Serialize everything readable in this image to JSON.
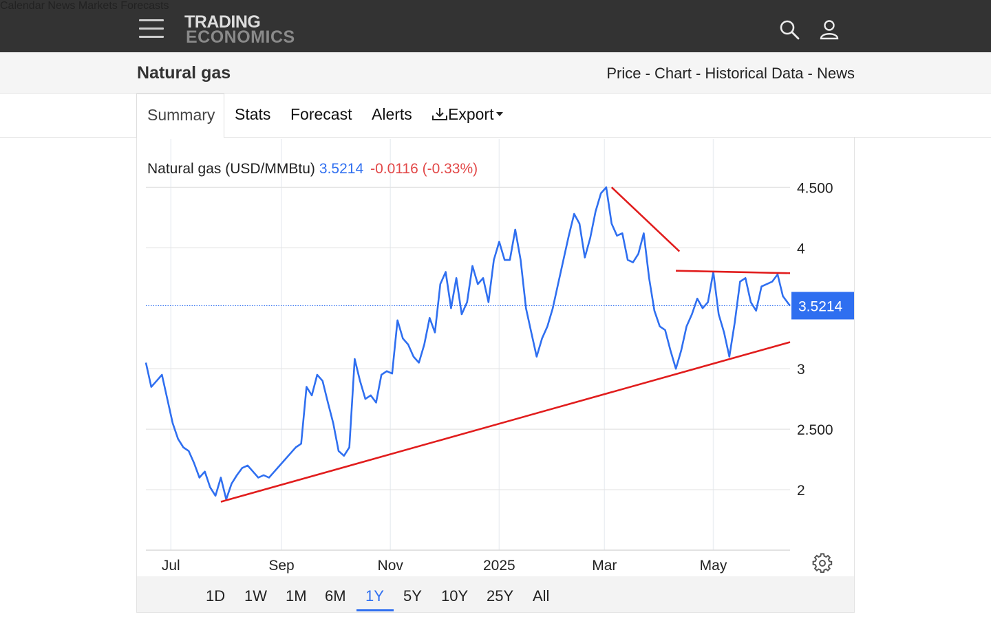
{
  "nav": {
    "logo_line1": "TRADING",
    "logo_line2": "ECONOMICS",
    "items": [
      "Calendar",
      "News",
      "Markets",
      "Forecasts"
    ]
  },
  "header": {
    "title": "Natural gas",
    "breadcrumb": "Price - Chart - Historical Data - News"
  },
  "tabs": [
    "Summary",
    "Stats",
    "Forecast",
    "Alerts",
    "Export"
  ],
  "chart_header": {
    "name": "Natural gas (USD/MMBtu)",
    "last": "3.5214",
    "change": "-0.0116 (-0.33%)"
  },
  "price_tag": "3.5214",
  "range_buttons": [
    "1D",
    "1W",
    "1M",
    "6M",
    "1Y",
    "5Y",
    "10Y",
    "25Y",
    "All"
  ],
  "active_range": "1Y",
  "colors": {
    "series": "#2f6ff0",
    "trendline": "#e11d1d",
    "negative": "#e24848",
    "nav_bg": "#333333"
  },
  "chart_data": {
    "type": "line",
    "title": "Natural gas (USD/MMBtu)",
    "ylim": [
      1.5,
      4.9
    ],
    "y_ticks": [
      "4.500",
      "4",
      "3.5214",
      "3",
      "2.500",
      "2"
    ],
    "y_tick_values": [
      4.5,
      4,
      3.5214,
      3,
      2.5,
      2
    ],
    "x_tick_labels": [
      "Jul",
      "Sep",
      "Nov",
      "2025",
      "Mar",
      "May"
    ],
    "x_tick_dates": [
      "2024-07-01",
      "2024-09-01",
      "2024-11-01",
      "2025-01-01",
      "2025-03-01",
      "2025-05-01"
    ],
    "x_range": [
      "2024-06-17",
      "2025-06-13"
    ],
    "grid": true,
    "series": [
      {
        "x": [
          "2024-06-17",
          "2024-06-20",
          "2024-06-23",
          "2024-06-26",
          "2024-06-29",
          "2024-07-02",
          "2024-07-05",
          "2024-07-08",
          "2024-07-11",
          "2024-07-14",
          "2024-07-17",
          "2024-07-20",
          "2024-07-23",
          "2024-07-26",
          "2024-07-29",
          "2024-08-01",
          "2024-08-04",
          "2024-08-07",
          "2024-08-10",
          "2024-08-13",
          "2024-08-16",
          "2024-08-19",
          "2024-08-22",
          "2024-08-25",
          "2024-08-28",
          "2024-08-31",
          "2024-09-03",
          "2024-09-06",
          "2024-09-09",
          "2024-09-12",
          "2024-09-15",
          "2024-09-18",
          "2024-09-21",
          "2024-09-24",
          "2024-09-27",
          "2024-09-30",
          "2024-10-03",
          "2024-10-06",
          "2024-10-09",
          "2024-10-12",
          "2024-10-15",
          "2024-10-18",
          "2024-10-21",
          "2024-10-24",
          "2024-10-27",
          "2024-10-30",
          "2024-11-02",
          "2024-11-05",
          "2024-11-08",
          "2024-11-11",
          "2024-11-14",
          "2024-11-17",
          "2024-11-20",
          "2024-11-23",
          "2024-11-26",
          "2024-11-29",
          "2024-12-02",
          "2024-12-05",
          "2024-12-08",
          "2024-12-11",
          "2024-12-14",
          "2024-12-17",
          "2024-12-20",
          "2024-12-23",
          "2024-12-26",
          "2024-12-29",
          "2025-01-01",
          "2025-01-04",
          "2025-01-07",
          "2025-01-10",
          "2025-01-13",
          "2025-01-16",
          "2025-01-19",
          "2025-01-22",
          "2025-01-25",
          "2025-01-28",
          "2025-01-31",
          "2025-02-03",
          "2025-02-06",
          "2025-02-09",
          "2025-02-12",
          "2025-02-15",
          "2025-02-18",
          "2025-02-21",
          "2025-02-24",
          "2025-02-27",
          "2025-03-02",
          "2025-03-05",
          "2025-03-08",
          "2025-03-11",
          "2025-03-14",
          "2025-03-17",
          "2025-03-20",
          "2025-03-23",
          "2025-03-26",
          "2025-03-29",
          "2025-04-01",
          "2025-04-04",
          "2025-04-07",
          "2025-04-10",
          "2025-04-13",
          "2025-04-16",
          "2025-04-19",
          "2025-04-22",
          "2025-04-25",
          "2025-04-28",
          "2025-05-01",
          "2025-05-04",
          "2025-05-07",
          "2025-05-10",
          "2025-05-13",
          "2025-05-16",
          "2025-05-19",
          "2025-05-22",
          "2025-05-25",
          "2025-05-28",
          "2025-05-31",
          "2025-06-03",
          "2025-06-06",
          "2025-06-09",
          "2025-06-13"
        ],
        "y": [
          3.05,
          2.85,
          2.9,
          2.95,
          2.75,
          2.55,
          2.42,
          2.35,
          2.32,
          2.22,
          2.1,
          2.15,
          2.02,
          1.95,
          2.1,
          1.92,
          2.05,
          2.12,
          2.18,
          2.2,
          2.15,
          2.1,
          2.12,
          2.1,
          2.15,
          2.2,
          2.25,
          2.3,
          2.35,
          2.38,
          2.85,
          2.78,
          2.95,
          2.9,
          2.72,
          2.55,
          2.32,
          2.28,
          2.35,
          3.08,
          2.9,
          2.75,
          2.78,
          2.72,
          2.95,
          2.98,
          2.96,
          3.4,
          3.25,
          3.2,
          3.1,
          3.05,
          3.2,
          3.42,
          3.3,
          3.7,
          3.8,
          3.5,
          3.75,
          3.45,
          3.55,
          3.85,
          3.7,
          3.75,
          3.55,
          3.9,
          4.05,
          3.9,
          3.9,
          4.15,
          3.9,
          3.5,
          3.3,
          3.1,
          3.25,
          3.35,
          3.5,
          3.7,
          3.9,
          4.1,
          4.28,
          4.2,
          3.92,
          4.08,
          4.3,
          4.45,
          4.5,
          4.2,
          4.1,
          4.12,
          3.9,
          3.88,
          3.95,
          4.12,
          3.75,
          3.48,
          3.35,
          3.32,
          3.15,
          3.0,
          3.15,
          3.35,
          3.45,
          3.58,
          3.5,
          3.55,
          3.8,
          3.45,
          3.3,
          3.1,
          3.38,
          3.72,
          3.75,
          3.55,
          3.48,
          3.68,
          3.7,
          3.72,
          3.78,
          3.6,
          3.52
        ],
        "trendlines": [
          {
            "from": [
              "2024-07-29",
              1.9
            ],
            "to": [
              "2025-06-13",
              3.22
            ]
          },
          {
            "from": [
              "2025-03-05",
              4.5
            ],
            "to": [
              "2025-04-12",
              3.97
            ]
          },
          {
            "from": [
              "2025-04-10",
              3.81
            ],
            "to": [
              "2025-06-13",
              3.79
            ]
          }
        ]
      }
    ]
  }
}
